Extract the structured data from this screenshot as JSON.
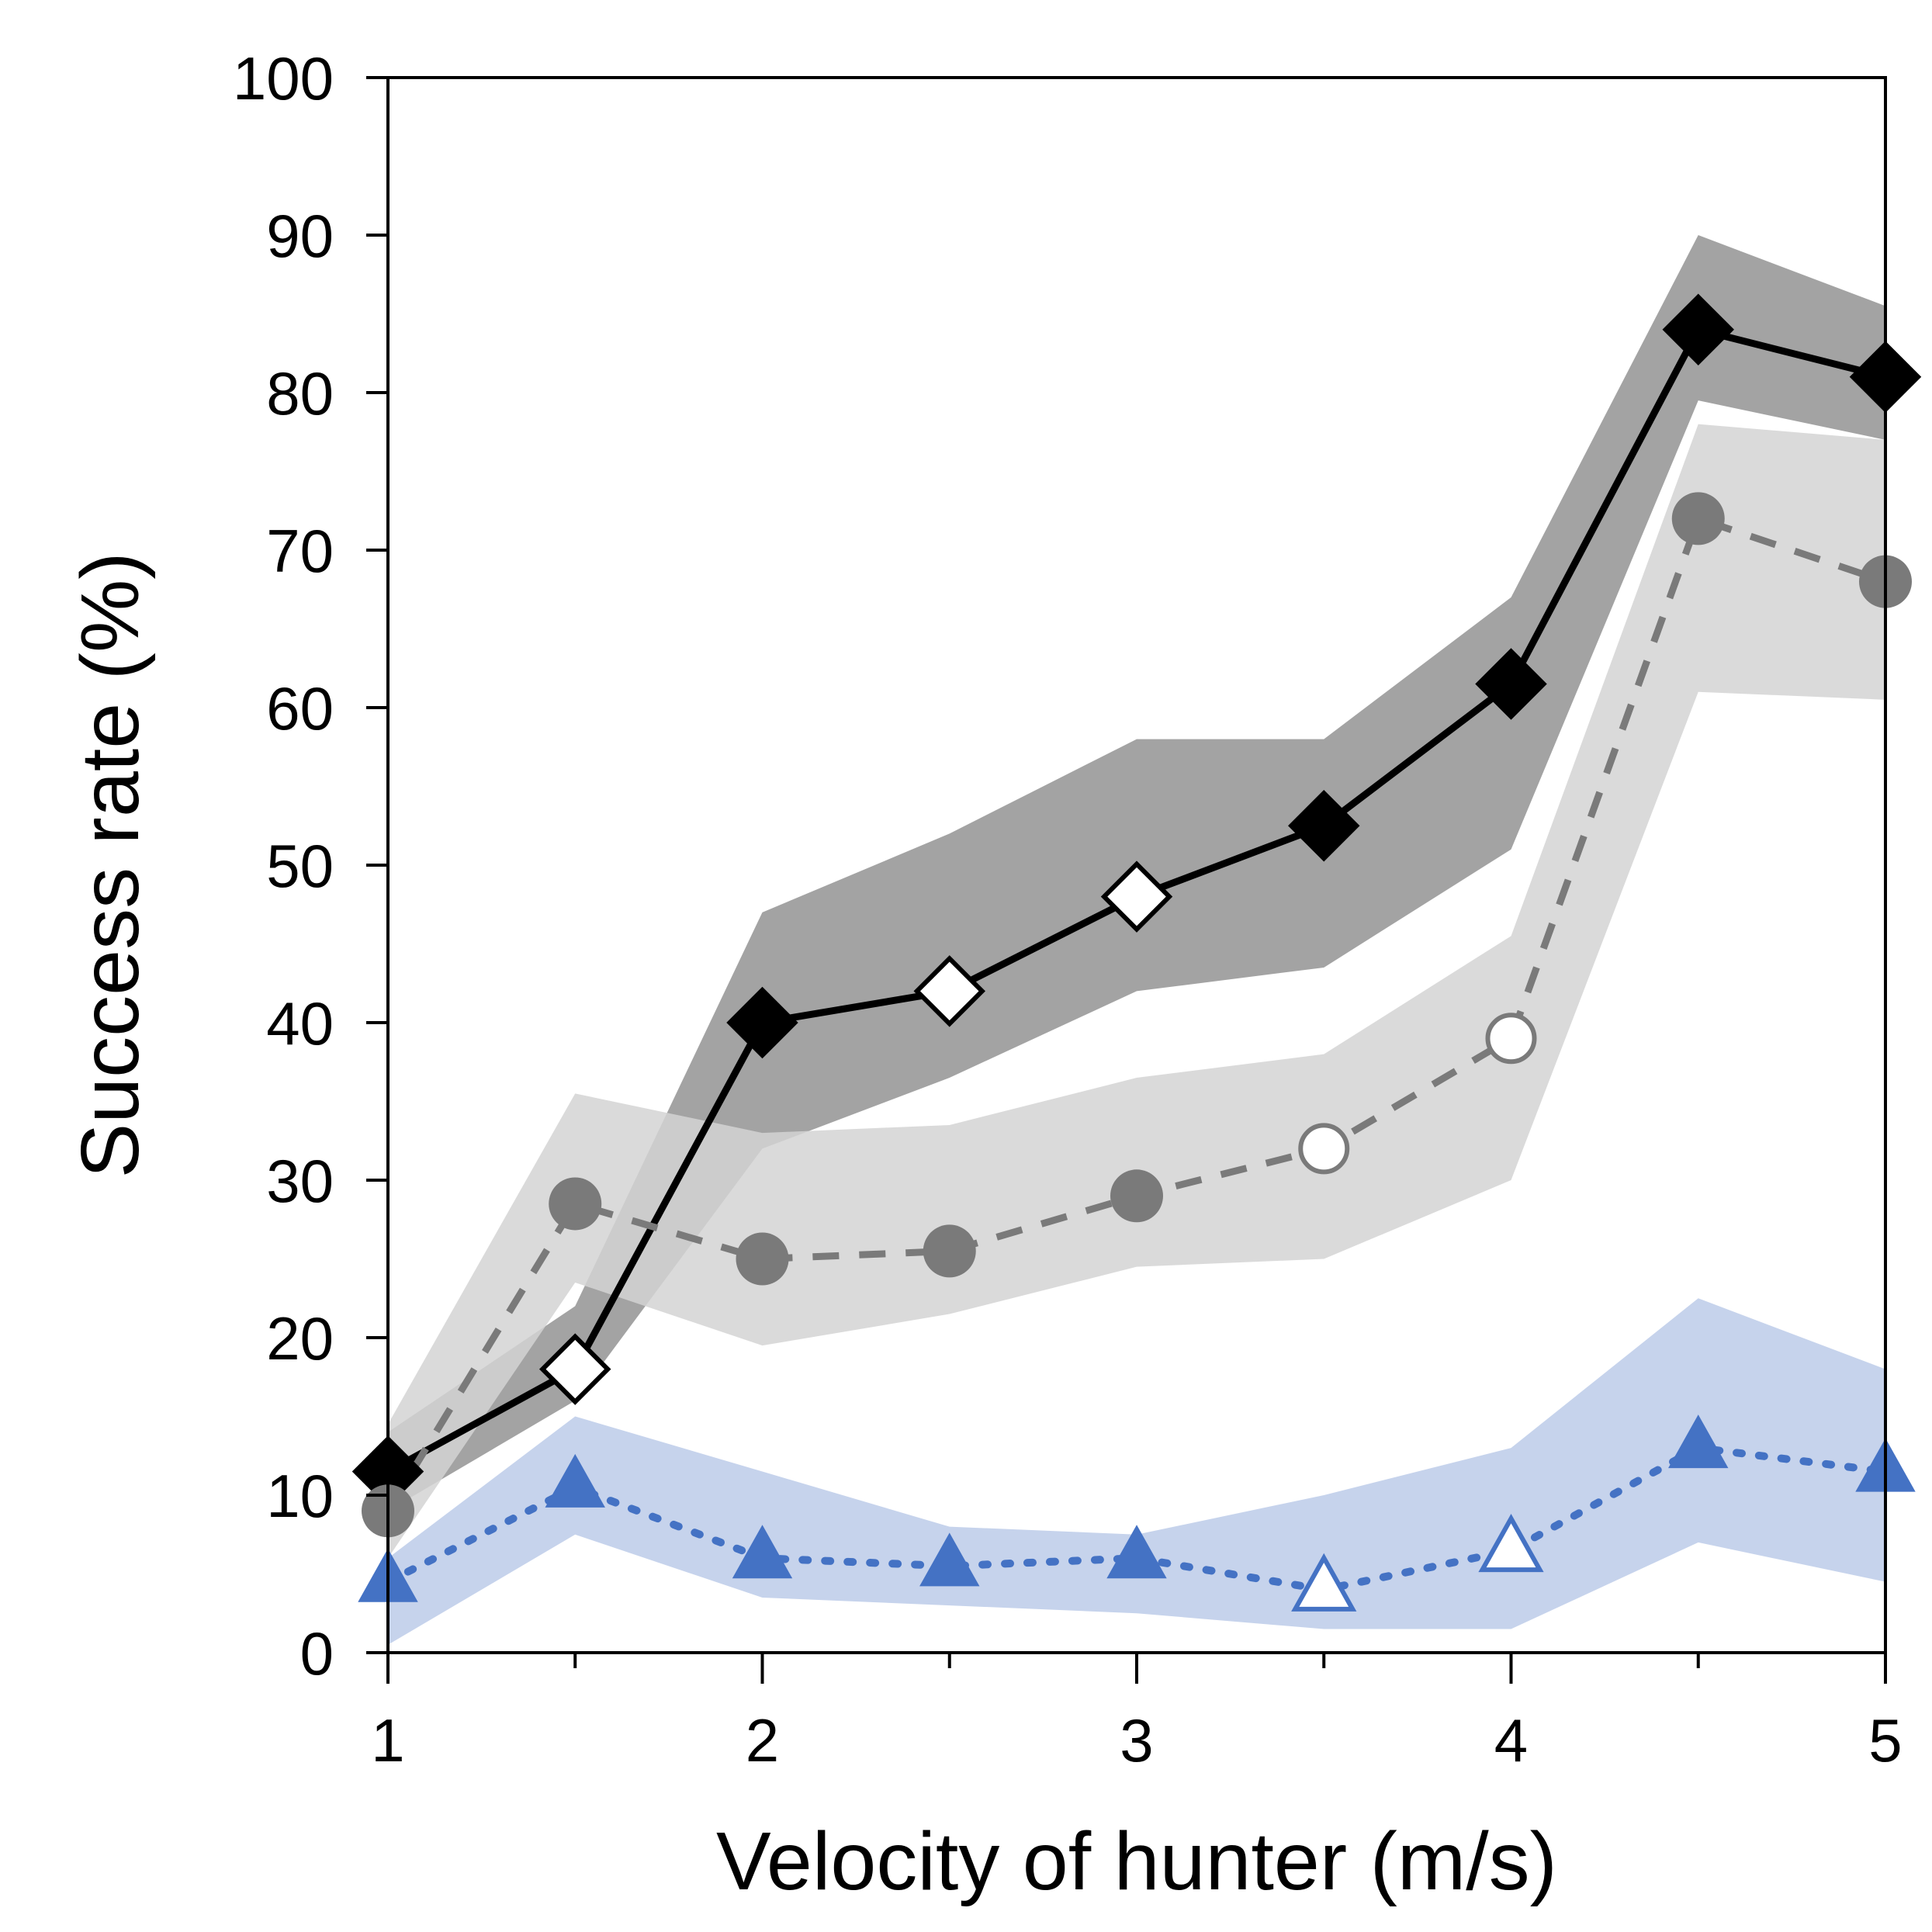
{
  "chart_data": {
    "type": "line",
    "xlabel": "Velocity of hunter (m/s)",
    "ylabel": "Success rate (%)",
    "xlim": [
      1,
      5
    ],
    "ylim": [
      0,
      100
    ],
    "x_major_ticks": [
      1,
      2,
      3,
      4,
      5
    ],
    "x_minor_ticks": [
      1.5,
      2.5,
      3.5,
      4.5
    ],
    "y_ticks": [
      0,
      10,
      20,
      30,
      40,
      50,
      60,
      70,
      80,
      90,
      100
    ],
    "grid": false,
    "legend": "none",
    "x": [
      1,
      1.5,
      2,
      2.5,
      3,
      3.5,
      4,
      4.5,
      5
    ],
    "series": [
      {
        "values": [
          11.5,
          18,
          40,
          42,
          48,
          52.5,
          61.5,
          84,
          81
        ],
        "band_upper": [
          14,
          22,
          47,
          52,
          58,
          58,
          67,
          90,
          85.5
        ],
        "band_lower": [
          9,
          16,
          32,
          36.5,
          42,
          43.5,
          51,
          79.5,
          77
        ],
        "hollow_markers": [
          1,
          3,
          4
        ],
        "marker": "diamond",
        "line_style": "solid",
        "color": "#000000",
        "band_color": "#a3a3a3"
      },
      {
        "values": [
          9,
          28.5,
          25,
          25.5,
          29,
          32,
          39,
          72,
          68
        ],
        "band_upper": [
          14.5,
          35.5,
          33,
          33.5,
          36.5,
          38,
          45.5,
          78,
          77
        ],
        "band_lower": [
          6,
          23.5,
          19.5,
          21.5,
          24.5,
          25,
          30,
          61,
          60.5
        ],
        "hollow_markers": [
          5,
          6
        ],
        "marker": "circle",
        "line_style": "dashed",
        "color": "#7a7a7a",
        "band_color": "#d3d3d3"
      },
      {
        "values": [
          4.5,
          10.5,
          6,
          5.5,
          6,
          4,
          6.5,
          13,
          11.5
        ],
        "band_upper": [
          6,
          15,
          11.5,
          8,
          7.5,
          10,
          13,
          22.5,
          18
        ],
        "band_lower": [
          0.5,
          7.5,
          3.5,
          3,
          2.5,
          1.5,
          1.5,
          7,
          4.5
        ],
        "hollow_markers": [
          5,
          6
        ],
        "marker": "triangle",
        "line_style": "dotted",
        "color": "#4472c4",
        "band_color": "#bccbe9"
      }
    ]
  }
}
